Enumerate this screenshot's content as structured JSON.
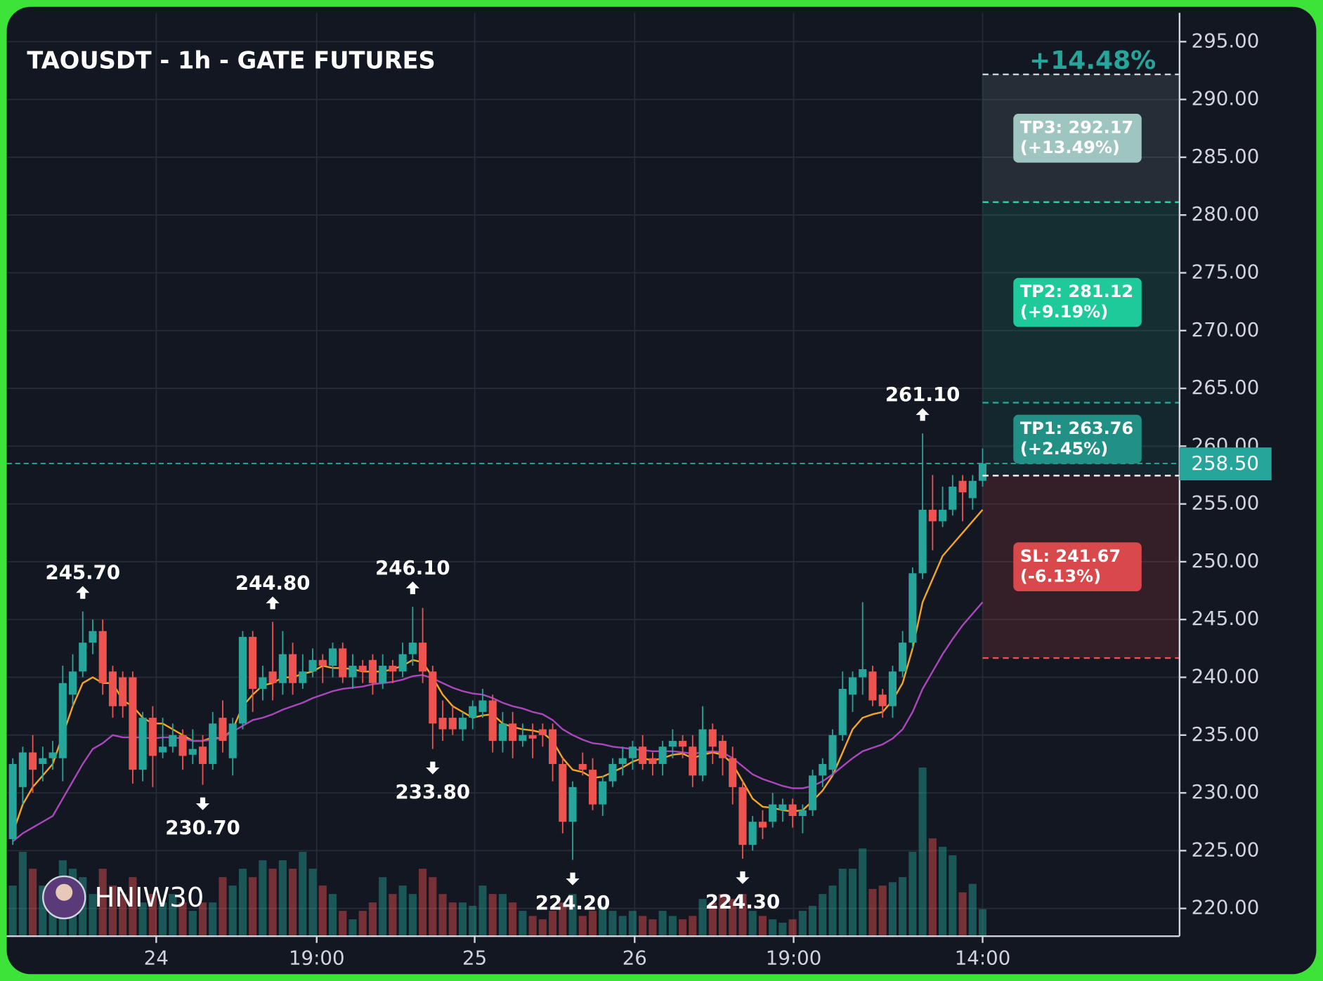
{
  "chart_data": {
    "type": "candlestick",
    "title": "TAOUSDT - 1h - GATE FUTURES",
    "watermark": "HNIW30",
    "max_change": "+14.48%",
    "xlim": [
      -0.6,
      116.7
    ],
    "xticks": [
      {
        "value": 14.35,
        "label": "24"
      },
      {
        "value": 30.4,
        "label": "19:00"
      },
      {
        "value": 46.2,
        "label": "25"
      },
      {
        "value": 62.2,
        "label": "26"
      },
      {
        "value": 78.1,
        "label": "19:00"
      },
      {
        "value": 97,
        "label": "14:00"
      }
    ],
    "ylim": [
      217.6,
      297.5
    ],
    "yticks": [
      {
        "value": 220,
        "label": "220.00"
      },
      {
        "value": 225,
        "label": "225.00"
      },
      {
        "value": 230,
        "label": "230.00"
      },
      {
        "value": 235,
        "label": "235.00"
      },
      {
        "value": 240,
        "label": "240.00"
      },
      {
        "value": 245,
        "label": "245.00"
      },
      {
        "value": 250,
        "label": "250.00"
      },
      {
        "value": 255,
        "label": "255.00"
      },
      {
        "value": 260,
        "label": "260.00"
      },
      {
        "value": 265,
        "label": "265.00"
      },
      {
        "value": 270,
        "label": "270.00"
      },
      {
        "value": 275,
        "label": "275.00"
      },
      {
        "value": 280,
        "label": "280.00"
      },
      {
        "value": 285,
        "label": "285.00"
      },
      {
        "value": 290,
        "label": "290.00"
      },
      {
        "value": 295,
        "label": "295.00"
      }
    ],
    "grid": true,
    "up_color": "#26a69a",
    "down_color": "#ef5350",
    "open": [
      226,
      230.5,
      233.5,
      232.5,
      233,
      233,
      238.5,
      240.5,
      243,
      244,
      240.5,
      240,
      240,
      232,
      236.5,
      233.5,
      234,
      235,
      233.3,
      234,
      232.5,
      236.5,
      233,
      236,
      243.5,
      239,
      240.5,
      239.5,
      242,
      239.5,
      240.5,
      241.5,
      241,
      242.5,
      240,
      241,
      241.5,
      239.5,
      241,
      240.5,
      242,
      243,
      240.5,
      236.5,
      236.5,
      235.5,
      236.5,
      237,
      238,
      234.5,
      236,
      234.5,
      235,
      235.5,
      235.5,
      232.5,
      227.5,
      232.5,
      232,
      229,
      231,
      232.5,
      233,
      234,
      233,
      232.5,
      234,
      234.5,
      234,
      231.5,
      235.5,
      234.5,
      233,
      230.5,
      225.5,
      227.5,
      227.5,
      228.5,
      229,
      228,
      228.5,
      231.5,
      232,
      235,
      238.5,
      240,
      240.5,
      238.5,
      237.5,
      240.5,
      243,
      249,
      254.5,
      253.5,
      254.5,
      257,
      255.5,
      257
    ],
    "high": [
      233,
      234,
      235,
      234,
      234.5,
      241,
      242,
      245.7,
      245,
      245,
      241,
      240.5,
      240.5,
      237,
      237.5,
      236.5,
      236,
      235.5,
      235.5,
      235,
      237,
      238,
      236.5,
      244,
      244,
      241,
      244.8,
      244,
      243,
      242,
      242.5,
      242,
      243,
      243,
      242,
      241.5,
      242,
      242,
      241.5,
      243,
      246.1,
      246,
      241,
      238,
      237.5,
      237,
      238,
      239,
      238.5,
      237,
      237,
      236,
      236,
      236,
      236,
      233,
      231,
      233.5,
      233,
      231.5,
      233,
      234,
      234.5,
      235,
      233.5,
      234.5,
      235.5,
      235,
      235,
      237.5,
      236,
      235,
      234,
      231,
      228,
      228.5,
      230,
      229.5,
      229.5,
      229,
      232,
      233,
      235.5,
      240.5,
      240.5,
      246.5,
      241,
      239,
      241,
      244,
      249.5,
      261.1,
      257.5,
      256.5,
      257.5,
      257.5,
      257.5,
      259.8
    ],
    "low": [
      225.5,
      229,
      230,
      231,
      232,
      231,
      237.5,
      240,
      242,
      238.5,
      236.5,
      236.5,
      230.8,
      231,
      230.5,
      233,
      233.5,
      232,
      232.5,
      230.7,
      232,
      233.5,
      231.5,
      235.5,
      237,
      238,
      238,
      238.5,
      238.5,
      239,
      240,
      239.5,
      240,
      239.5,
      239,
      239.5,
      238.5,
      239,
      239.5,
      240,
      241,
      239.5,
      233.8,
      234.5,
      235,
      234.5,
      235.5,
      236.5,
      233.5,
      233.5,
      233,
      234,
      233,
      234,
      231,
      226.5,
      224.2,
      231.5,
      228.5,
      228,
      230.5,
      231.5,
      232,
      232,
      231.5,
      231.5,
      233,
      233,
      230.5,
      231,
      232.5,
      231.5,
      229,
      224.3,
      225,
      226,
      227,
      227.5,
      227,
      226.5,
      228,
      230.5,
      231.5,
      234.5,
      237,
      238.5,
      237.5,
      236.5,
      236.5,
      240,
      242.5,
      248.5,
      251,
      253,
      254,
      253.5,
      254.5,
      256.5
    ],
    "close": [
      232.5,
      233.5,
      232,
      233,
      233.5,
      239.5,
      240.5,
      243,
      244,
      239.5,
      237.5,
      237.5,
      232,
      236.5,
      233.2,
      234,
      235,
      233.2,
      233.8,
      232.5,
      236,
      234.5,
      236,
      243.5,
      239,
      240,
      239.5,
      242,
      239.5,
      240.5,
      241.5,
      241,
      242.5,
      240,
      241,
      240.5,
      239.5,
      241,
      240.5,
      242,
      243,
      240.5,
      236,
      235.5,
      235.5,
      236.5,
      237.5,
      238,
      234.5,
      236,
      234.5,
      235,
      234.7,
      235,
      232.5,
      227.5,
      230.5,
      232,
      229,
      231,
      232.5,
      233,
      234,
      232.5,
      232.5,
      234,
      234.5,
      234,
      231.5,
      235.5,
      234,
      233,
      230.5,
      225.5,
      227.5,
      227,
      229,
      229,
      228,
      228.5,
      231.5,
      232.5,
      235,
      239,
      240,
      240.7,
      238,
      237.5,
      240.5,
      243,
      249,
      254.5,
      253.5,
      254.5,
      256.5,
      256,
      257,
      258.5
    ],
    "volume": [
      30,
      50,
      40,
      30,
      20,
      45,
      40,
      35,
      25,
      40,
      30,
      25,
      35,
      20,
      25,
      20,
      25,
      20,
      15,
      20,
      20,
      35,
      30,
      40,
      35,
      45,
      40,
      45,
      40,
      50,
      40,
      30,
      25,
      15,
      10,
      15,
      20,
      35,
      25,
      30,
      25,
      40,
      35,
      25,
      20,
      20,
      18,
      30,
      25,
      25,
      20,
      15,
      12,
      10,
      15,
      20,
      25,
      12,
      15,
      18,
      15,
      12,
      15,
      12,
      10,
      15,
      12,
      10,
      12,
      22,
      20,
      25,
      22,
      25,
      15,
      12,
      10,
      8,
      10,
      15,
      18,
      25,
      30,
      40,
      40,
      52,
      28,
      30,
      32,
      35,
      50,
      100,
      58,
      53,
      48,
      26,
      31,
      16
    ],
    "vlim": [
      0,
      547.5
    ],
    "ma_lines": [
      {
        "color": "#f5a623",
        "values": [
          226.5,
          229,
          230.5,
          231.5,
          232.5,
          235,
          237.5,
          239.5,
          240,
          239.5,
          239.5,
          238,
          237.5,
          236.5,
          236,
          236,
          235.5,
          235,
          234.5,
          234.5,
          234.8,
          234.7,
          235.5,
          237.5,
          238.5,
          239.3,
          239.5,
          240,
          240,
          240.3,
          240.5,
          241,
          240.8,
          240.8,
          240.7,
          240.5,
          240.5,
          240.5,
          240.7,
          241,
          241.5,
          241.3,
          240,
          238.5,
          237.5,
          237,
          236.5,
          236.7,
          236.8,
          236,
          235.7,
          235.5,
          235.4,
          235.2,
          234.5,
          233,
          232,
          231.8,
          231.3,
          231.4,
          231.8,
          232.2,
          232.7,
          233,
          232.8,
          233,
          233.3,
          233.4,
          233,
          233.3,
          233.5,
          233.3,
          232.5,
          231,
          229.5,
          228.8,
          228.7,
          228.5,
          228.4,
          228.5,
          229.3,
          230.2,
          231.5,
          233.5,
          235.5,
          236.5,
          236.8,
          237,
          238,
          239.5,
          242.5,
          246.5,
          248.5,
          250.5,
          251.5,
          252.5,
          253.5,
          254.5
        ]
      },
      {
        "color": "#ab47bc",
        "values": [
          225.8,
          226.5,
          227,
          227.5,
          228,
          229.5,
          231,
          232.5,
          233.8,
          234.3,
          235,
          234.8,
          234.8,
          234.8,
          234.7,
          234.8,
          234.8,
          234.7,
          234.5,
          234.5,
          234.6,
          234.8,
          235.3,
          235.8,
          236.3,
          236.5,
          236.8,
          237.2,
          237.5,
          237.8,
          238.2,
          238.5,
          238.8,
          239,
          239.1,
          239.2,
          239.4,
          239.5,
          239.6,
          239.8,
          240.1,
          240.2,
          239.9,
          239.5,
          239.1,
          238.8,
          238.6,
          238.5,
          238.2,
          237.8,
          237.5,
          237.3,
          237,
          236.8,
          236.3,
          235.5,
          235,
          234.6,
          234.3,
          234.2,
          234,
          233.9,
          233.8,
          233.7,
          233.6,
          233.6,
          233.6,
          233.5,
          233.4,
          233.5,
          233.6,
          233.5,
          233,
          232.3,
          231.6,
          231.2,
          230.9,
          230.6,
          230.4,
          230.4,
          230.6,
          231,
          231.6,
          232.3,
          233,
          233.6,
          233.9,
          234.2,
          234.7,
          235.5,
          237,
          239,
          240.5,
          242,
          243.3,
          244.5,
          245.5,
          246.5
        ]
      }
    ],
    "swing_highs": [
      {
        "index": 7,
        "value": 245.7,
        "label": "245.70"
      },
      {
        "index": 26,
        "value": 244.8,
        "label": "244.80"
      },
      {
        "index": 40,
        "value": 246.1,
        "label": "246.10"
      },
      {
        "index": 91,
        "value": 261.1,
        "label": "261.10"
      }
    ],
    "swing_lows": [
      {
        "index": 19,
        "value": 230.7,
        "label": "230.70"
      },
      {
        "index": 42,
        "value": 233.8,
        "label": "233.80"
      },
      {
        "index": 56,
        "value": 224.2,
        "label": "224.20"
      },
      {
        "index": 73,
        "value": 224.3,
        "label": "224.30"
      }
    ],
    "current_price": {
      "value": 258.5,
      "label": "258.50"
    },
    "entry": 257.45,
    "trade_start_index": 97,
    "targets": [
      {
        "label": "TP1: 263.76",
        "change": "(+2.45%)",
        "value": 263.76,
        "color": "#229185",
        "line_color": "#26a69a"
      },
      {
        "label": "TP2: 281.12",
        "change": "(+9.19%)",
        "value": 281.12,
        "color": "#1ec99a",
        "line_color": "#2bd1a4"
      },
      {
        "label": "TP3: 292.17",
        "change": "(+13.49%)",
        "value": 292.17,
        "color": "#9fc5c0",
        "line_color": "#c8d6da"
      }
    ],
    "stop": {
      "label": "SL: 241.67",
      "change": "(-6.13%)",
      "value": 241.67,
      "color": "#d9484a",
      "line_color": "#e05555"
    }
  }
}
